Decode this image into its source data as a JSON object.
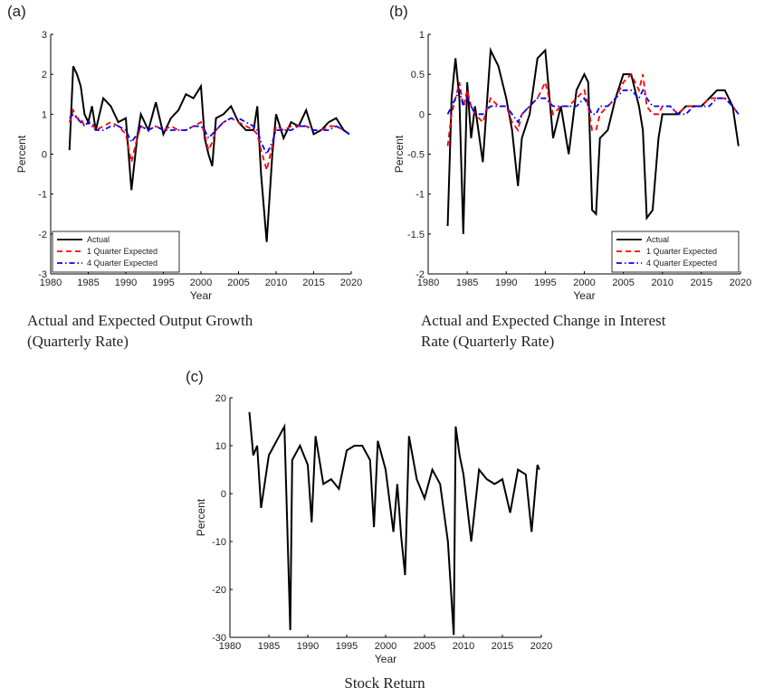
{
  "chart_data": [
    {
      "type": "line",
      "panel_label": "(a)",
      "caption": [
        "Actual and Expected Output Growth",
        "(Quarterly Rate)"
      ],
      "xlabel": "Year",
      "ylabel": "Percent",
      "x": [
        1982.5,
        1983,
        1983.5,
        1984,
        1984.5,
        1985,
        1985.5,
        1986,
        1987,
        1988,
        1989,
        1990,
        1990.75,
        1991.5,
        1992,
        1993,
        1994,
        1995,
        1996,
        1997,
        1998,
        1999,
        2000,
        2000.5,
        2001,
        2001.5,
        2002,
        2003,
        2004,
        2005,
        2006,
        2007,
        2007.5,
        2008,
        2008.75,
        2009.5,
        2010,
        2011,
        2012,
        2013,
        2014,
        2015,
        2016,
        2017,
        2018,
        2019,
        2019.75
      ],
      "series": [
        {
          "name": "Actual",
          "color": "#000000",
          "line_style": "solid",
          "values": [
            0.1,
            2.2,
            2.0,
            1.7,
            1.0,
            0.8,
            1.2,
            0.6,
            1.4,
            1.2,
            0.8,
            0.9,
            -0.9,
            0.4,
            1.0,
            0.6,
            1.3,
            0.5,
            0.9,
            1.1,
            1.5,
            1.4,
            1.7,
            0.4,
            0.0,
            -0.3,
            0.9,
            1.0,
            1.2,
            0.8,
            0.6,
            0.6,
            1.2,
            -0.5,
            -2.2,
            0.0,
            1.0,
            0.4,
            0.8,
            0.7,
            1.1,
            0.5,
            0.6,
            0.8,
            0.9,
            0.6,
            0.5
          ]
        },
        {
          "name": "1 Quarter Expected",
          "color": "#ff0000",
          "line_style": "dashed",
          "values": [
            0.8,
            1.1,
            0.9,
            0.9,
            0.7,
            0.8,
            0.8,
            0.6,
            0.7,
            0.8,
            0.7,
            0.5,
            -0.2,
            0.4,
            0.7,
            0.6,
            0.7,
            0.6,
            0.7,
            0.6,
            0.6,
            0.7,
            0.8,
            0.5,
            0.1,
            0.3,
            0.6,
            0.8,
            0.9,
            0.8,
            0.7,
            0.6,
            0.5,
            0.1,
            -0.4,
            0.2,
            0.7,
            0.6,
            0.7,
            0.7,
            0.7,
            0.6,
            0.6,
            0.7,
            0.7,
            0.6,
            0.5
          ]
        },
        {
          "name": "4 Quarter Expected",
          "color": "#0000ff",
          "line_style": "dashdot",
          "values": [
            0.9,
            1.0,
            0.9,
            0.8,
            0.7,
            0.8,
            0.7,
            0.6,
            0.6,
            0.7,
            0.7,
            0.6,
            0.3,
            0.5,
            0.7,
            0.6,
            0.7,
            0.6,
            0.6,
            0.6,
            0.6,
            0.7,
            0.7,
            0.6,
            0.4,
            0.5,
            0.6,
            0.8,
            0.9,
            0.9,
            0.8,
            0.7,
            0.6,
            0.3,
            0.0,
            0.3,
            0.6,
            0.6,
            0.6,
            0.7,
            0.7,
            0.6,
            0.6,
            0.6,
            0.7,
            0.6,
            0.5
          ]
        }
      ],
      "xlim": [
        1980,
        2020
      ],
      "xticks": [
        1980,
        1985,
        1990,
        1995,
        2000,
        2005,
        2010,
        2015,
        2020
      ],
      "ylim": [
        -3,
        3
      ],
      "yticks": [
        -3,
        -2,
        -1,
        0,
        1,
        2,
        3
      ],
      "legend": "lower left"
    },
    {
      "type": "line",
      "panel_label": "(b)",
      "caption": [
        "Actual and Expected Change in Interest",
        "Rate (Quarterly Rate)"
      ],
      "xlabel": "Year",
      "ylabel": "Percent",
      "x": [
        1982.5,
        1983,
        1983.5,
        1984,
        1984.5,
        1985,
        1985.5,
        1986,
        1987,
        1988,
        1989,
        1990,
        1990.75,
        1991.5,
        1992,
        1993,
        1994,
        1995,
        1996,
        1997,
        1998,
        1999,
        2000,
        2000.5,
        2001,
        2001.5,
        2002,
        2003,
        2004,
        2005,
        2006,
        2007,
        2007.5,
        2008,
        2008.75,
        2009.5,
        2010,
        2011,
        2012,
        2013,
        2014,
        2015,
        2016,
        2017,
        2018,
        2019,
        2019.75
      ],
      "series": [
        {
          "name": "Actual",
          "color": "#000000",
          "line_style": "solid",
          "values": [
            -1.4,
            0.2,
            0.7,
            0.2,
            -1.5,
            0.4,
            -0.3,
            0.1,
            -0.6,
            0.8,
            0.6,
            0.2,
            -0.2,
            -0.9,
            -0.3,
            0.0,
            0.7,
            0.8,
            -0.3,
            0.1,
            -0.5,
            0.3,
            0.5,
            0.4,
            -1.2,
            -1.25,
            -0.3,
            -0.2,
            0.2,
            0.5,
            0.5,
            0.1,
            -0.2,
            -1.3,
            -1.2,
            -0.3,
            0.0,
            0.0,
            0.0,
            0.1,
            0.1,
            0.1,
            0.2,
            0.3,
            0.3,
            0.1,
            -0.4
          ]
        },
        {
          "name": "1 Quarter Expected",
          "color": "#ff0000",
          "line_style": "dashed",
          "values": [
            -0.4,
            0.0,
            0.2,
            0.4,
            0.1,
            0.3,
            0.1,
            0.0,
            -0.1,
            0.2,
            0.1,
            0.1,
            -0.1,
            -0.2,
            0.0,
            0.1,
            0.2,
            0.4,
            0.0,
            0.1,
            0.1,
            0.2,
            0.3,
            0.1,
            -0.2,
            -0.2,
            0.0,
            0.1,
            0.2,
            0.4,
            0.5,
            0.3,
            0.5,
            0.1,
            0.0,
            0.0,
            0.1,
            0.1,
            0.0,
            0.1,
            0.1,
            0.1,
            0.2,
            0.2,
            0.2,
            0.1,
            0.0
          ]
        },
        {
          "name": "4 Quarter Expected",
          "color": "#0000ff",
          "line_style": "dashdot",
          "values": [
            0.0,
            0.1,
            0.2,
            0.3,
            0.1,
            0.2,
            0.1,
            0.0,
            0.0,
            0.1,
            0.1,
            0.1,
            0.0,
            -0.1,
            0.0,
            0.1,
            0.2,
            0.2,
            0.1,
            0.1,
            0.1,
            0.1,
            0.2,
            0.1,
            0.0,
            0.0,
            0.1,
            0.1,
            0.2,
            0.3,
            0.3,
            0.2,
            0.3,
            0.2,
            0.1,
            0.1,
            0.1,
            0.1,
            0.0,
            0.0,
            0.1,
            0.1,
            0.1,
            0.2,
            0.2,
            0.1,
            0.0
          ]
        }
      ],
      "xlim": [
        1980,
        2020
      ],
      "xticks": [
        1980,
        1985,
        1990,
        1995,
        2000,
        2005,
        2010,
        2015,
        2020
      ],
      "ylim": [
        -2,
        1
      ],
      "yticks": [
        -2,
        -1.5,
        -1,
        -0.5,
        0,
        0.5,
        1
      ],
      "legend": "lower right"
    },
    {
      "type": "line",
      "panel_label": "(c)",
      "caption": [
        "Stock Return"
      ],
      "xlabel": "Year",
      "ylabel": "Percent",
      "x": [
        1982.5,
        1983,
        1983.5,
        1984,
        1985,
        1986,
        1987,
        1987.75,
        1988,
        1989,
        1990,
        1990.5,
        1991,
        1992,
        1993,
        1994,
        1995,
        1996,
        1997,
        1998,
        1998.5,
        1999,
        2000,
        2001,
        2001.5,
        2002,
        2002.5,
        2003,
        2004,
        2005,
        2006,
        2007,
        2008,
        2008.75,
        2009,
        2009.5,
        2010,
        2011,
        2012,
        2013,
        2014,
        2015,
        2016,
        2017,
        2018,
        2018.75,
        2019.5,
        2019.75
      ],
      "series": [
        {
          "color": "#000000",
          "line_style": "solid",
          "values": [
            17,
            8,
            10,
            -3,
            8,
            11,
            14,
            -28.5,
            7,
            10,
            6,
            -6,
            12,
            2,
            3,
            1,
            9,
            10,
            10,
            7,
            -7,
            11,
            5,
            -8,
            2,
            -9,
            -17,
            12,
            3,
            -1,
            5,
            2,
            -10,
            -29.5,
            14,
            8,
            4,
            -10,
            5,
            3,
            2,
            3,
            -4,
            5,
            4,
            -8,
            6,
            5
          ]
        }
      ],
      "xlim": [
        1980,
        2020
      ],
      "xticks": [
        1980,
        1985,
        1990,
        1995,
        2000,
        2005,
        2010,
        2015,
        2020
      ],
      "ylim": [
        -30,
        20
      ],
      "yticks": [
        -30,
        -20,
        -10,
        0,
        10,
        20
      ]
    }
  ]
}
